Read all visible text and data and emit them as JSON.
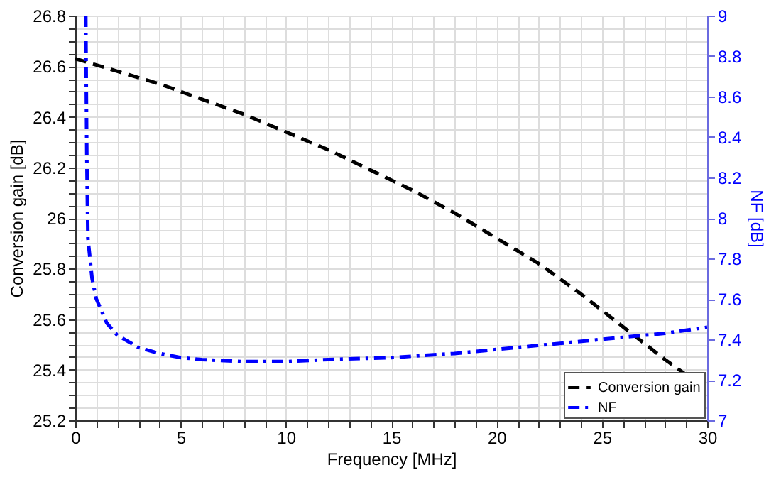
{
  "chart_data": {
    "type": "line",
    "xlabel": "Frequency [MHz]",
    "ylabel": "Conversion gain [dB]",
    "y2label": "NF [dB]",
    "xlim": [
      0,
      30
    ],
    "xticks": [
      0,
      {
        "value": 1,
        "label": null
      },
      {
        "value": 2,
        "label": null
      },
      {
        "value": 3,
        "label": null
      },
      {
        "value": 4,
        "label": null
      },
      5,
      {
        "value": 6,
        "label": null
      },
      {
        "value": 7,
        "label": null
      },
      {
        "value": 8,
        "label": null
      },
      {
        "value": 9,
        "label": null
      },
      10,
      {
        "value": 11,
        "label": null
      },
      {
        "value": 12,
        "label": null
      },
      {
        "value": 13,
        "label": null
      },
      {
        "value": 14,
        "label": null
      },
      15,
      {
        "value": 16,
        "label": null
      },
      {
        "value": 17,
        "label": null
      },
      {
        "value": 18,
        "label": null
      },
      {
        "value": 19,
        "label": null
      },
      20,
      {
        "value": 21,
        "label": null
      },
      {
        "value": 22,
        "label": null
      },
      {
        "value": 23,
        "label": null
      },
      {
        "value": 24,
        "label": null
      },
      25,
      {
        "value": 26,
        "label": null
      },
      {
        "value": 27,
        "label": null
      },
      {
        "value": 28,
        "label": null
      },
      {
        "value": 29,
        "label": null
      },
      30
    ],
    "ylim": [
      25.2,
      26.8
    ],
    "yticks": [
      25.2,
      {
        "value": 25.25,
        "label": null
      },
      {
        "value": 25.3,
        "label": null
      },
      {
        "value": 25.35,
        "label": null
      },
      25.4,
      {
        "value": 25.45,
        "label": null
      },
      {
        "value": 25.5,
        "label": null
      },
      {
        "value": 25.55,
        "label": null
      },
      25.6,
      {
        "value": 25.65,
        "label": null
      },
      {
        "value": 25.7,
        "label": null
      },
      {
        "value": 25.75,
        "label": null
      },
      25.8,
      {
        "value": 25.85,
        "label": null
      },
      {
        "value": 25.9,
        "label": null
      },
      {
        "value": 25.95,
        "label": null
      },
      26,
      {
        "value": 26.05,
        "label": null
      },
      {
        "value": 26.1,
        "label": null
      },
      {
        "value": 26.15,
        "label": null
      },
      26.2,
      {
        "value": 26.25,
        "label": null
      },
      {
        "value": 26.3,
        "label": null
      },
      {
        "value": 26.35,
        "label": null
      },
      26.4,
      {
        "value": 26.45,
        "label": null
      },
      {
        "value": 26.5,
        "label": null
      },
      {
        "value": 26.55,
        "label": null
      },
      26.6,
      {
        "value": 26.65,
        "label": null
      },
      {
        "value": 26.7,
        "label": null
      },
      {
        "value": 26.75,
        "label": null
      },
      26.8
    ],
    "y2lim": [
      7,
      9
    ],
    "y2ticks": [
      7,
      7.2,
      7.4,
      7.6,
      7.8,
      8,
      8.2,
      8.4,
      8.6,
      8.8,
      9
    ],
    "grid": true,
    "legend": "bottom right",
    "marker": "none",
    "series": [
      {
        "name": "Conversion gain",
        "color": "#000000",
        "line_style": "dashed",
        "x": [
          0,
          2,
          4,
          6,
          8,
          10,
          12,
          14,
          16,
          18,
          20,
          22,
          24,
          26,
          28,
          30
        ],
        "values": [
          26.63,
          26.58,
          26.53,
          26.47,
          26.41,
          26.34,
          26.27,
          26.19,
          26.11,
          26.02,
          25.92,
          25.82,
          25.7,
          25.57,
          25.44,
          25.32
        ]
      },
      {
        "name": "NF",
        "color": "#0000ff",
        "line_style": "dashdot",
        "axis": "y2",
        "x": [
          0.5,
          0.55,
          0.6,
          0.8,
          1,
          1.5,
          2,
          3,
          4,
          5,
          6,
          8,
          10,
          12,
          15,
          18,
          20,
          22,
          25,
          28,
          30
        ],
        "values": [
          9,
          8.3,
          7.9,
          7.7,
          7.6,
          7.48,
          7.42,
          7.36,
          7.33,
          7.31,
          7.3,
          7.29,
          7.29,
          7.3,
          7.31,
          7.33,
          7.35,
          7.37,
          7.4,
          7.43,
          7.46
        ]
      }
    ]
  }
}
